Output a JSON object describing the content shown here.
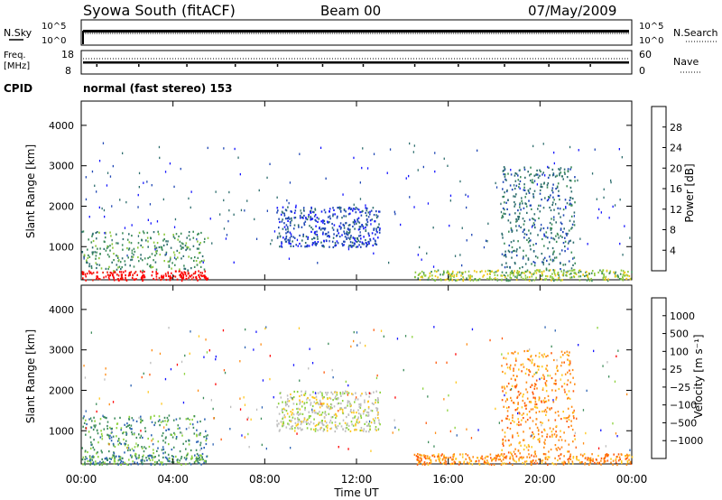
{
  "header": {
    "title": "Syowa South (fitACF)",
    "beam": "Beam 00",
    "date": "07/May/2009"
  },
  "noise_panel": {
    "left_label": "N.Sky",
    "right_label": "N.Search",
    "ticks": [
      "10^5",
      "10^0"
    ]
  },
  "freq_panel": {
    "left_label_1": "Freq.",
    "left_label_2": "[MHz]",
    "left_ticks": [
      "18",
      "8"
    ],
    "right_ticks": [
      "60",
      "0"
    ],
    "right_label": "Nave"
  },
  "cpid": {
    "label": "CPID",
    "text": "normal (fast stereo) 153"
  },
  "colors": {
    "power_scale": [
      "#1414ff",
      "#1e46b4",
      "#2e6e6e",
      "#3c8c5a",
      "#8cc83c",
      "#f0c814",
      "#ff8c14",
      "#ff5a0a",
      "#e61e0a",
      "#ff0000"
    ],
    "velocity_scale": [
      "#ff0000",
      "#ff5a0a",
      "#ff8c14",
      "#ffc81e",
      "#bebebe",
      "#8cd23c",
      "#3c8c5a",
      "#2d64b4",
      "#1414ff"
    ],
    "velocity_neutral": "#c8c8c8"
  },
  "chart_data": [
    {
      "type": "heatmap",
      "title": "Power",
      "ylabel": "Slant Range [km]",
      "colorbar_label": "Power [dB]",
      "colorbar_ticks": [
        "28",
        "24",
        "20",
        "16",
        "12",
        "8",
        "4"
      ],
      "ylim": [
        180,
        4600
      ],
      "yticks": [
        "4000",
        "3000",
        "2000",
        "1000"
      ],
      "xlim": [
        "00:00",
        "24:00"
      ],
      "scatter_regions": [
        {
          "t_start": 0.0,
          "t_end": 5.5,
          "range_min": 180,
          "range_max": 420,
          "level": 9,
          "density": 0.8
        },
        {
          "t_start": 0.0,
          "t_end": 5.5,
          "range_min": 420,
          "range_max": 1400,
          "level": 3,
          "density": 0.25
        },
        {
          "t_start": 8.5,
          "t_end": 13.0,
          "range_min": 1000,
          "range_max": 2000,
          "level": 1,
          "density": 0.5
        },
        {
          "t_start": 14.5,
          "t_end": 24.0,
          "range_min": 180,
          "range_max": 450,
          "level": 4,
          "density": 0.7
        },
        {
          "t_start": 18.3,
          "t_end": 21.5,
          "range_min": 450,
          "range_max": 3000,
          "level": 2,
          "density": 0.25
        }
      ]
    },
    {
      "type": "heatmap",
      "title": "Velocity",
      "ylabel": "Slant Range [km]",
      "colorbar_label": "Velocity [m s⁻¹]",
      "colorbar_ticks": [
        "1000",
        "500",
        "100",
        "25",
        "−25",
        "−100",
        "−500",
        "−1000"
      ],
      "ylim": [
        180,
        4600
      ],
      "yticks": [
        "4000",
        "3000",
        "2000",
        "1000"
      ],
      "xlim": [
        "00:00",
        "24:00"
      ],
      "xticks": [
        "00:00",
        "04:00",
        "08:00",
        "12:00",
        "16:00",
        "20:00",
        "00:00"
      ],
      "xlabel": "Time UT",
      "scatter_regions": [
        {
          "t_start": 0.0,
          "t_end": 5.5,
          "range_min": 180,
          "range_max": 420,
          "level": 6,
          "density": 0.8
        },
        {
          "t_start": 0.0,
          "t_end": 5.5,
          "range_min": 420,
          "range_max": 1400,
          "level": 6,
          "density": 0.25
        },
        {
          "t_start": 8.5,
          "t_end": 13.0,
          "range_min": 1000,
          "range_max": 2000,
          "level": 4,
          "density": 0.5
        },
        {
          "t_start": 14.5,
          "t_end": 24.0,
          "range_min": 180,
          "range_max": 450,
          "level": 2,
          "density": 0.7
        },
        {
          "t_start": 18.3,
          "t_end": 21.5,
          "range_min": 450,
          "range_max": 3000,
          "level": 2,
          "density": 0.25
        }
      ]
    }
  ]
}
